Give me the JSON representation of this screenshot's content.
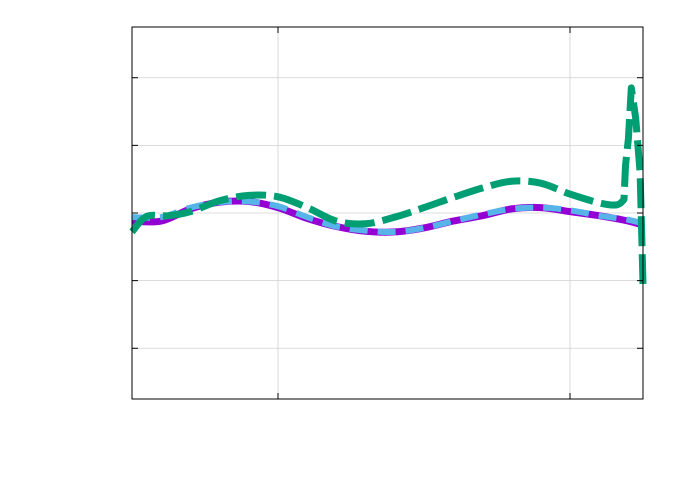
{
  "chart_data": {
    "type": "line",
    "title": "",
    "xlabel": "",
    "ylabel": "",
    "xlim": [
      0,
      3.5
    ],
    "ylim": [
      -2.75,
      2.75
    ],
    "xticks": [
      1,
      3
    ],
    "yticks": [
      -2,
      -1,
      0,
      1,
      2
    ],
    "grid": true,
    "legend": "none",
    "series": [
      {
        "color": "#9400d3",
        "style": "solid",
        "x": [
          0,
          0.2,
          0.4,
          0.6,
          0.8,
          1.0,
          1.2,
          1.4,
          1.6,
          1.8,
          2.0,
          2.2,
          2.4,
          2.6,
          2.8,
          3.0,
          3.2,
          3.4,
          3.5
        ],
        "values": [
          -0.12,
          -0.12,
          0.06,
          0.16,
          0.17,
          0.08,
          -0.08,
          -0.2,
          -0.27,
          -0.28,
          -0.22,
          -0.12,
          -0.04,
          0.06,
          0.08,
          0.02,
          -0.04,
          -0.12,
          -0.18
        ]
      },
      {
        "color": "#56b4e9",
        "style": "dashed",
        "x": [
          0,
          0.2,
          0.4,
          0.6,
          0.8,
          1.0,
          1.2,
          1.4,
          1.6,
          1.8,
          2.0,
          2.2,
          2.4,
          2.6,
          2.8,
          3.0,
          3.2,
          3.4,
          3.5
        ],
        "values": [
          -0.06,
          -0.06,
          0.08,
          0.16,
          0.17,
          0.1,
          -0.06,
          -0.2,
          -0.26,
          -0.28,
          -0.22,
          -0.12,
          -0.02,
          0.06,
          0.08,
          0.04,
          -0.04,
          -0.1,
          -0.16
        ]
      },
      {
        "color": "#009e73",
        "style": "dashed",
        "x": [
          0,
          0.1,
          0.25,
          0.4,
          0.6,
          0.8,
          1.0,
          1.2,
          1.4,
          1.6,
          1.8,
          2.0,
          2.2,
          2.4,
          2.6,
          2.8,
          3.0,
          3.2,
          3.32,
          3.37,
          3.38,
          3.4,
          3.42,
          3.45,
          3.48,
          3.5
        ],
        "values": [
          -0.28,
          -0.05,
          -0.04,
          0.02,
          0.18,
          0.26,
          0.24,
          0.08,
          -0.12,
          -0.16,
          -0.06,
          0.08,
          0.23,
          0.37,
          0.47,
          0.44,
          0.28,
          0.15,
          0.12,
          0.2,
          0.7,
          1.1,
          1.85,
          1.4,
          0.6,
          -1.05
        ]
      }
    ]
  }
}
